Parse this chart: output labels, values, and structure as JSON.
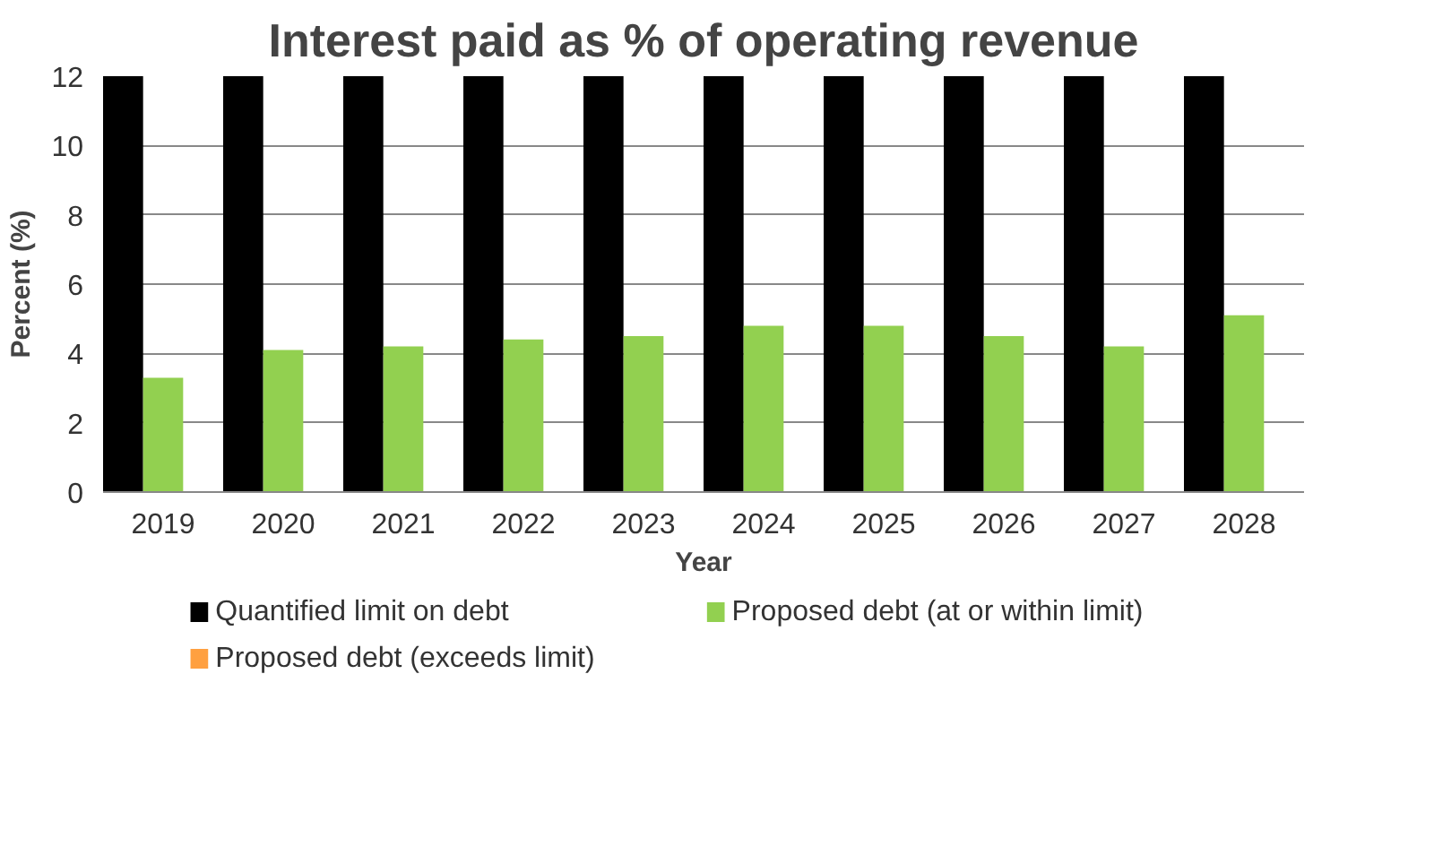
{
  "chart_data": {
    "type": "bar",
    "title": "Interest paid as % of operating revenue",
    "xlabel": "Year",
    "ylabel": "Percent (%)",
    "categories": [
      "2019",
      "2020",
      "2021",
      "2022",
      "2023",
      "2024",
      "2025",
      "2026",
      "2027",
      "2028"
    ],
    "series": [
      {
        "name": "Quantified limit on debt",
        "color": "#000000",
        "values": [
          12,
          12,
          12,
          12,
          12,
          12,
          12,
          12,
          12,
          12
        ]
      },
      {
        "name": "Proposed debt (at or within limit)",
        "color": "#92d050",
        "values": [
          3.3,
          4.1,
          4.2,
          4.4,
          4.5,
          4.8,
          4.8,
          4.5,
          4.2,
          5.1
        ]
      },
      {
        "name": "Proposed debt (exceeds limit)",
        "color": "#ffa040",
        "values": [
          null,
          null,
          null,
          null,
          null,
          null,
          null,
          null,
          null,
          null
        ]
      }
    ],
    "ylim": [
      0,
      12
    ],
    "yticks": [
      0,
      2,
      4,
      6,
      8,
      10,
      12
    ],
    "grid": "y",
    "legend": "bottom"
  }
}
